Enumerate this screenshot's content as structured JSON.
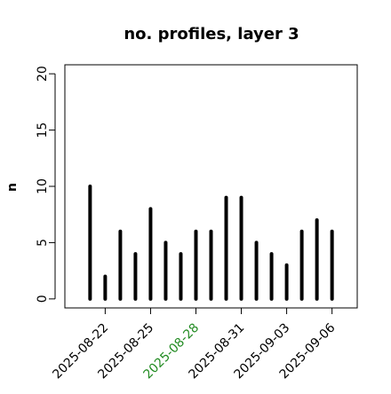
{
  "chart_data": {
    "type": "bar-h-lines",
    "title": "no. profiles, layer 3",
    "y_label": "n",
    "x": [
      "2025-08-21",
      "2025-08-22",
      "2025-08-23",
      "2025-08-24",
      "2025-08-25",
      "2025-08-26",
      "2025-08-27",
      "2025-08-28",
      "2025-08-29",
      "2025-08-30",
      "2025-08-31",
      "2025-09-01",
      "2025-09-02",
      "2025-09-03",
      "2025-09-04",
      "2025-09-05",
      "2025-09-06"
    ],
    "values": [
      10,
      2,
      6,
      4,
      8,
      5,
      4,
      6,
      6,
      9,
      9,
      5,
      4,
      3,
      6,
      7,
      6
    ],
    "color": "#000000",
    "xlim": [
      "2025-08-19T08:00:00Z",
      "2025-09-07T16:00:00Z"
    ],
    "xticks": [
      "2025-08-22",
      "2025-08-25",
      "2025-08-28",
      "2025-08-31",
      "2025-09-03",
      "2025-09-06"
    ],
    "xtick_colors": [
      "#000000",
      "#000000",
      "#228b22",
      "#000000",
      "#000000",
      "#000000"
    ],
    "ylim": [
      -0.8,
      20.8
    ],
    "yticks": [
      0,
      5,
      10,
      15,
      20
    ]
  }
}
